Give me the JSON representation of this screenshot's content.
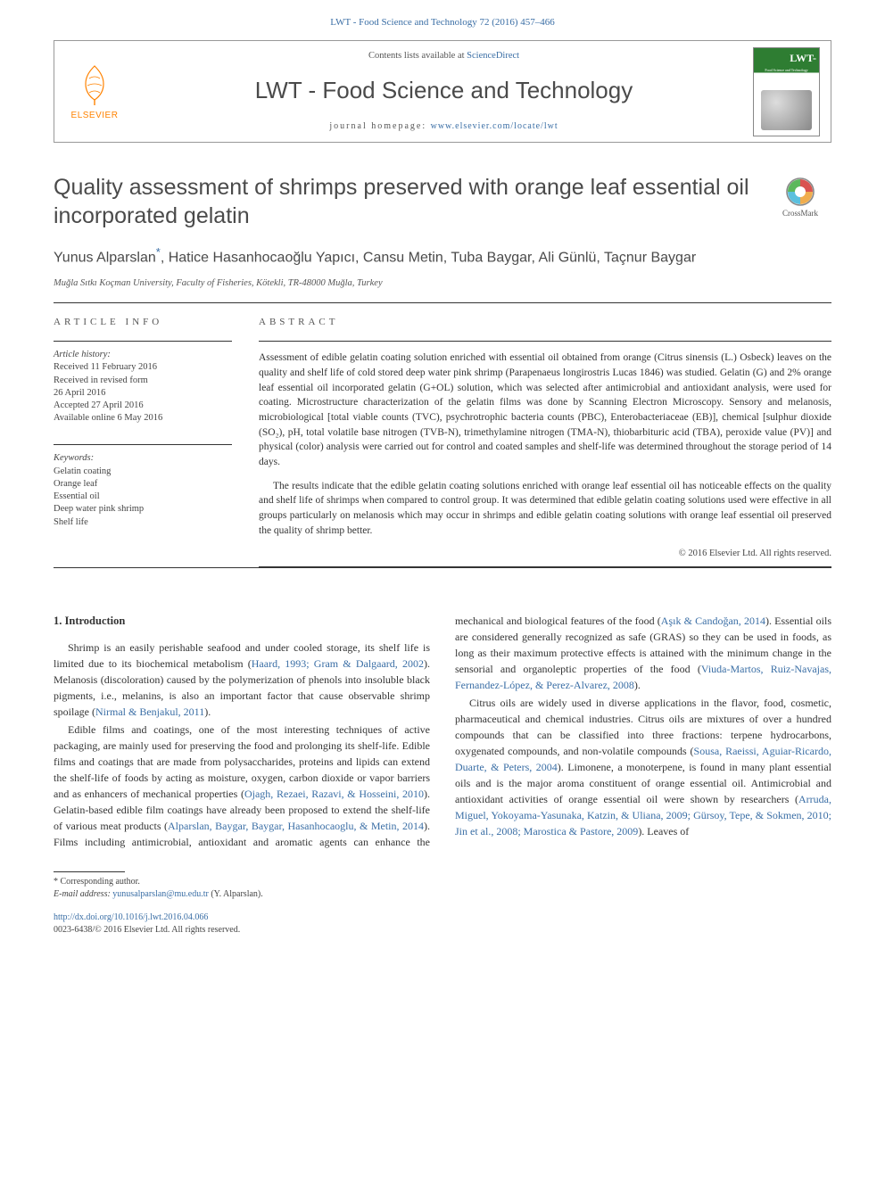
{
  "journal_ref": {
    "text": "LWT - Food Science and Technology 72 (2016) 457–466",
    "link_color": "#3a6ea5"
  },
  "header": {
    "contents_prefix": "Contents lists available at ",
    "contents_link": "ScienceDirect",
    "journal_title": "LWT - Food Science and Technology",
    "homepage_prefix": "journal homepage: ",
    "homepage_url": "www.elsevier.com/locate/lwt",
    "publisher": "ELSEVIER",
    "cover": {
      "lwt": "LWT-",
      "sub": "Food Science and Technology"
    }
  },
  "crossmark_label": "CrossMark",
  "article": {
    "title": "Quality assessment of shrimps preserved with orange leaf essential oil incorporated gelatin",
    "authors_html": "Yunus Alparslan<span class='star'>*</span>, Hatice Hasanhocaoğlu Yapıcı, Cansu Metin, Tuba Baygar, Ali Günlü, Taçnur Baygar",
    "affiliation": "Muğla Sıtkı Koçman University, Faculty of Fisheries, Kötekli, TR-48000 Muğla, Turkey"
  },
  "article_info": {
    "heading": "ARTICLE INFO",
    "history_label": "Article history:",
    "history": [
      "Received 11 February 2016",
      "Received in revised form",
      "26 April 2016",
      "Accepted 27 April 2016",
      "Available online 6 May 2016"
    ],
    "keywords_label": "Keywords:",
    "keywords": [
      "Gelatin coating",
      "Orange leaf",
      "Essential oil",
      "Deep water pink shrimp",
      "Shelf life"
    ]
  },
  "abstract": {
    "heading": "ABSTRACT",
    "p1": "Assessment of edible gelatin coating solution enriched with essential oil obtained from orange (Citrus sinensis (L.) Osbeck) leaves on the quality and shelf life of cold stored deep water pink shrimp (Parapenaeus longirostris Lucas 1846) was studied. Gelatin (G) and 2% orange leaf essential oil incorporated gelatin (G+OL) solution, which was selected after antimicrobial and antioxidant analysis, were used for coating. Microstructure characterization of the gelatin films was done by Scanning Electron Microscopy. Sensory and melanosis, microbiological [total viable counts (TVC), psychrotrophic bacteria counts (PBC), Enterobacteriaceae (EB)], chemical [sulphur dioxide (SO₂), pH, total volatile base nitrogen (TVB-N), trimethylamine nitrogen (TMA-N), thiobarbituric acid (TBA), peroxide value (PV)] and physical (color) analysis were carried out for control and coated samples and shelf-life was determined throughout the storage period of 14 days.",
    "p2": "The results indicate that the edible gelatin coating solutions enriched with orange leaf essential oil has noticeable effects on the quality and shelf life of shrimps when compared to control group. It was determined that edible gelatin coating solutions used were effective in all groups particularly on melanosis which may occur in shrimps and edible gelatin coating solutions with orange leaf essential oil preserved the quality of shrimp better.",
    "copyright": "© 2016 Elsevier Ltd. All rights reserved."
  },
  "intro": {
    "heading": "1. Introduction",
    "p1_pre": "Shrimp is an easily perishable seafood and under cooled storage, its shelf life is limited due to its biochemical metabolism (",
    "p1_ref1": "Haard, 1993; Gram & Dalgaard, 2002",
    "p1_mid": "). Melanosis (discoloration) caused by the polymerization of phenols into insoluble black pigments, i.e., melanins, is also an important factor that cause observable shrimp spoilage (",
    "p1_ref2": "Nirmal & Benjakul, 2011",
    "p1_post": ").",
    "p2_pre": "Edible films and coatings, one of the most interesting techniques of active packaging, are mainly used for preserving the food and prolonging its shelf-life. Edible films and coatings that are made from polysaccharides, proteins and lipids can extend the shelf-life of foods by acting as moisture, oxygen, carbon dioxide or vapor barriers and as enhancers of mechanical properties (",
    "p2_ref1": "Ojagh, Rezaei, Razavi, & Hosseini, 2010",
    "p2_mid": "). Gelatin-based edible film coatings have already been proposed to extend the shelf-life of various meat products (",
    "p2_ref2": "Alparslan, Baygar, Baygar, Hasanhocaoglu, & Metin, 2014",
    "p2_mid2": "). Films including antimicrobial, antioxidant and aromatic agents can enhance the mechanical and biological features of the food (",
    "p2_ref3": "Aşık & Candoğan, 2014",
    "p2_mid3": "). Essential oils are considered generally recognized as safe (GRAS) so they can be used in foods, as long as their maximum protective effects is attained with the minimum change in the sensorial and organoleptic properties of the food (",
    "p2_ref4": "Viuda-Martos, Ruiz-Navajas, Fernandez-López, & Perez-Alvarez, 2008",
    "p2_post": ").",
    "p3_pre": "Citrus oils are widely used in diverse applications in the flavor, food, cosmetic, pharmaceutical and chemical industries. Citrus oils are mixtures of over a hundred compounds that can be classified into three fractions: terpene hydrocarbons, oxygenated compounds, and non-volatile compounds (",
    "p3_ref1": "Sousa, Raeissi, Aguiar-Ricardo, Duarte, & Peters, 2004",
    "p3_mid": "). Limonene, a monoterpene, is found in many plant essential oils and is the major aroma constituent of orange essential oil. Antimicrobial and antioxidant activities of orange essential oil were shown by researchers (",
    "p3_ref2": "Arruda, Miguel, Yokoyama-Yasunaka, Katzin, & Uliana, 2009; Gürsoy, Tepe, & Sokmen, 2010; Jin et al., 2008; Marostica & Pastore, 2009",
    "p3_post": "). Leaves of"
  },
  "footnote": {
    "corr": "* Corresponding author.",
    "email_pre": "E-mail address: ",
    "email": "yunusalparslan@mu.edu.tr",
    "email_post": " (Y. Alparslan).",
    "doi": "http://dx.doi.org/10.1016/j.lwt.2016.04.066",
    "issn": "0023-6438/© 2016 Elsevier Ltd. All rights reserved."
  },
  "colors": {
    "link": "#3a6ea5",
    "orange": "#ff8200",
    "text": "#333333",
    "gray": "#555555"
  }
}
